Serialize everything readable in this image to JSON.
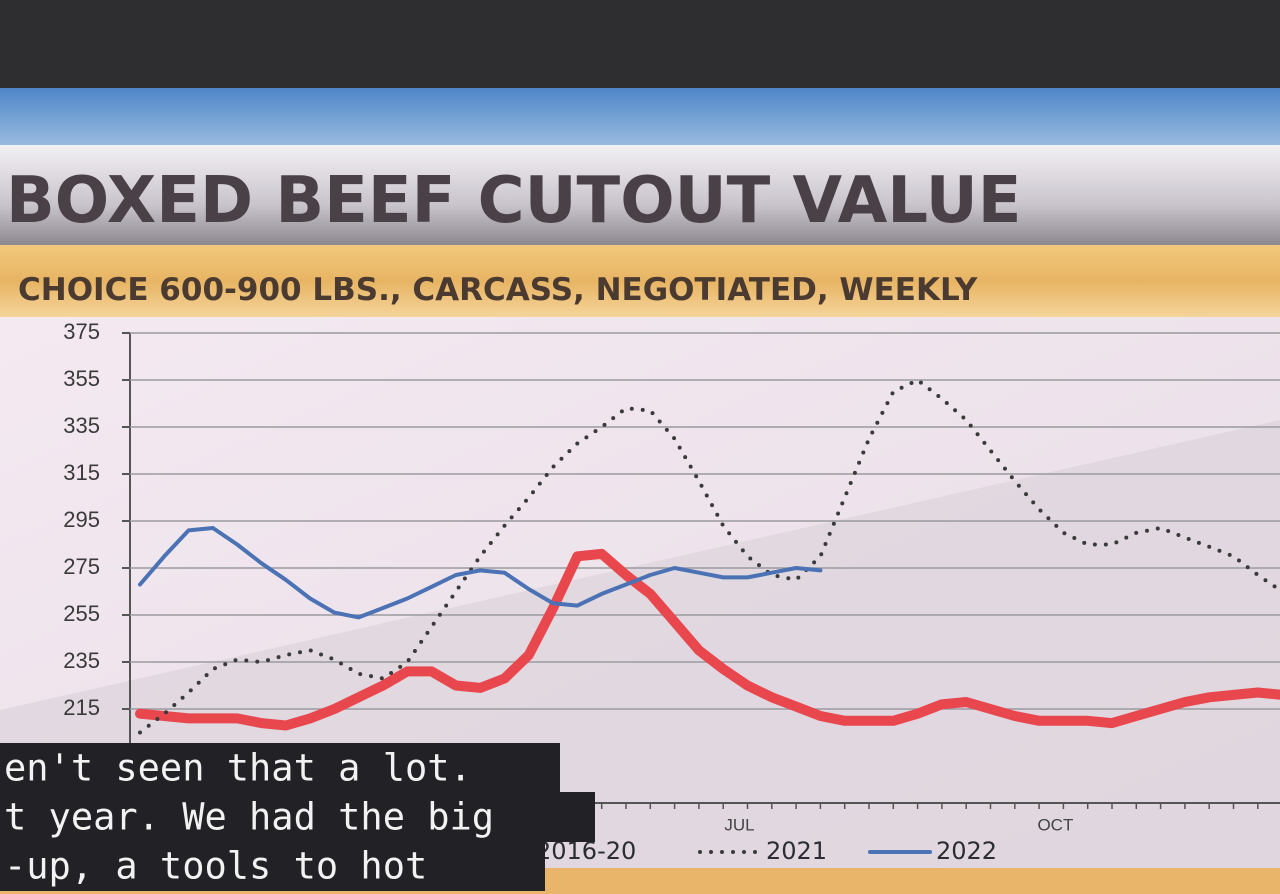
{
  "chart_data": {
    "type": "line",
    "title": "BOXED BEEF CUTOUT VALUE",
    "subtitle": "CHOICE 600-900 LBS., CARCASS, NEGOTIATED, WEEKLY",
    "categories": [
      null,
      null,
      null,
      null,
      null,
      null,
      null,
      null,
      null,
      null,
      null,
      null,
      null,
      null,
      null,
      null,
      null,
      null,
      null,
      null,
      null,
      null,
      null,
      null,
      null,
      "JUL",
      null,
      null,
      null,
      null,
      null,
      null,
      null,
      null,
      null,
      null,
      null,
      null,
      "OCT",
      null,
      null,
      null,
      null,
      null,
      null,
      null,
      null,
      null
    ],
    "series": [
      {
        "name": "2016-20",
        "color": "#e8474d",
        "dash": "solid",
        "line_width": 10,
        "values": [
          213,
          212,
          211,
          211,
          211,
          209,
          208,
          211,
          215,
          220,
          225,
          231,
          231,
          225,
          224,
          228,
          238,
          258,
          280,
          281,
          272,
          264,
          252,
          240,
          232,
          225,
          220,
          216,
          212,
          210,
          210,
          210,
          213,
          217,
          218,
          215,
          212,
          210,
          210,
          210,
          209,
          212,
          215,
          218,
          220,
          221,
          222,
          221
        ]
      },
      {
        "name": "2021",
        "color": "#3a3a3a",
        "dash": "dotted",
        "line_width": 4,
        "values": [
          205,
          213,
          222,
          232,
          236,
          235,
          238,
          240,
          236,
          230,
          228,
          235,
          250,
          265,
          280,
          293,
          305,
          318,
          328,
          335,
          343,
          342,
          330,
          312,
          293,
          280,
          272,
          270,
          280,
          305,
          330,
          350,
          355,
          347,
          338,
          325,
          312,
          300,
          290,
          285,
          285,
          290,
          292,
          288,
          284,
          280,
          272,
          265
        ]
      },
      {
        "name": "2022",
        "color": "#4a72b4",
        "dash": "solid",
        "line_width": 4,
        "values": [
          268,
          280,
          291,
          292,
          285,
          277,
          270,
          262,
          256,
          254,
          258,
          262,
          267,
          272,
          274,
          273,
          266,
          260,
          259,
          264,
          268,
          272,
          275,
          273,
          271,
          271,
          273,
          275,
          274,
          null,
          null,
          null,
          null,
          null,
          null,
          null,
          null,
          null,
          null,
          null,
          null,
          null,
          null,
          null,
          null,
          null,
          null,
          null
        ]
      }
    ],
    "ylim": [
      175,
      375
    ],
    "yticks": [
      215,
      235,
      255,
      275,
      295,
      315,
      335,
      355,
      375
    ],
    "grid": true
  },
  "captions": [
    "en't seen that a lot.",
    "t year. We had the big",
    "-up, a tools to hot"
  ]
}
